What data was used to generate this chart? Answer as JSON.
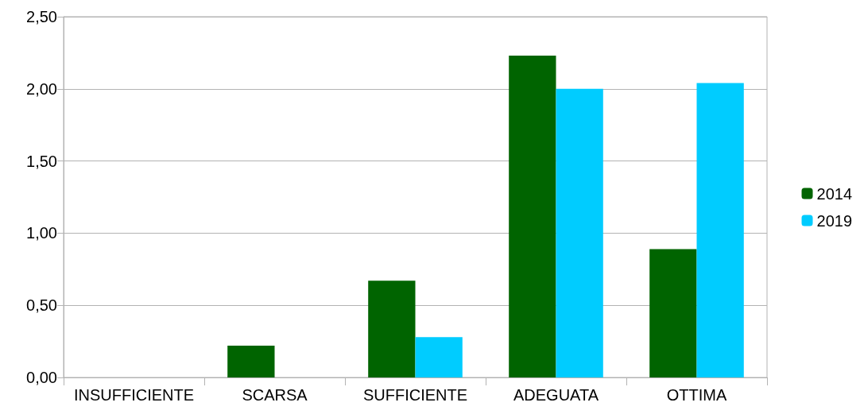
{
  "chart_data": {
    "type": "bar",
    "categories": [
      "INSUFFICIENTE",
      "SCARSA",
      "SUFFICIENTE",
      "ADEGUATA",
      "OTTIMA"
    ],
    "series": [
      {
        "name": "2014",
        "color": "#006400",
        "values": [
          0,
          0.22,
          0.67,
          2.23,
          0.89
        ]
      },
      {
        "name": "2019",
        "color": "#00ccff",
        "values": [
          0,
          0,
          0.28,
          2.0,
          2.04
        ]
      }
    ],
    "ylim": [
      0,
      2.5
    ],
    "yticks": [
      {
        "value": 0,
        "label": "0,00"
      },
      {
        "value": 0.5,
        "label": "0,50"
      },
      {
        "value": 1,
        "label": "1,00"
      },
      {
        "value": 1.5,
        "label": "1,50"
      },
      {
        "value": 2,
        "label": "2,00"
      },
      {
        "value": 2.5,
        "label": "2,50"
      }
    ],
    "grid": "y",
    "legend": "right"
  }
}
